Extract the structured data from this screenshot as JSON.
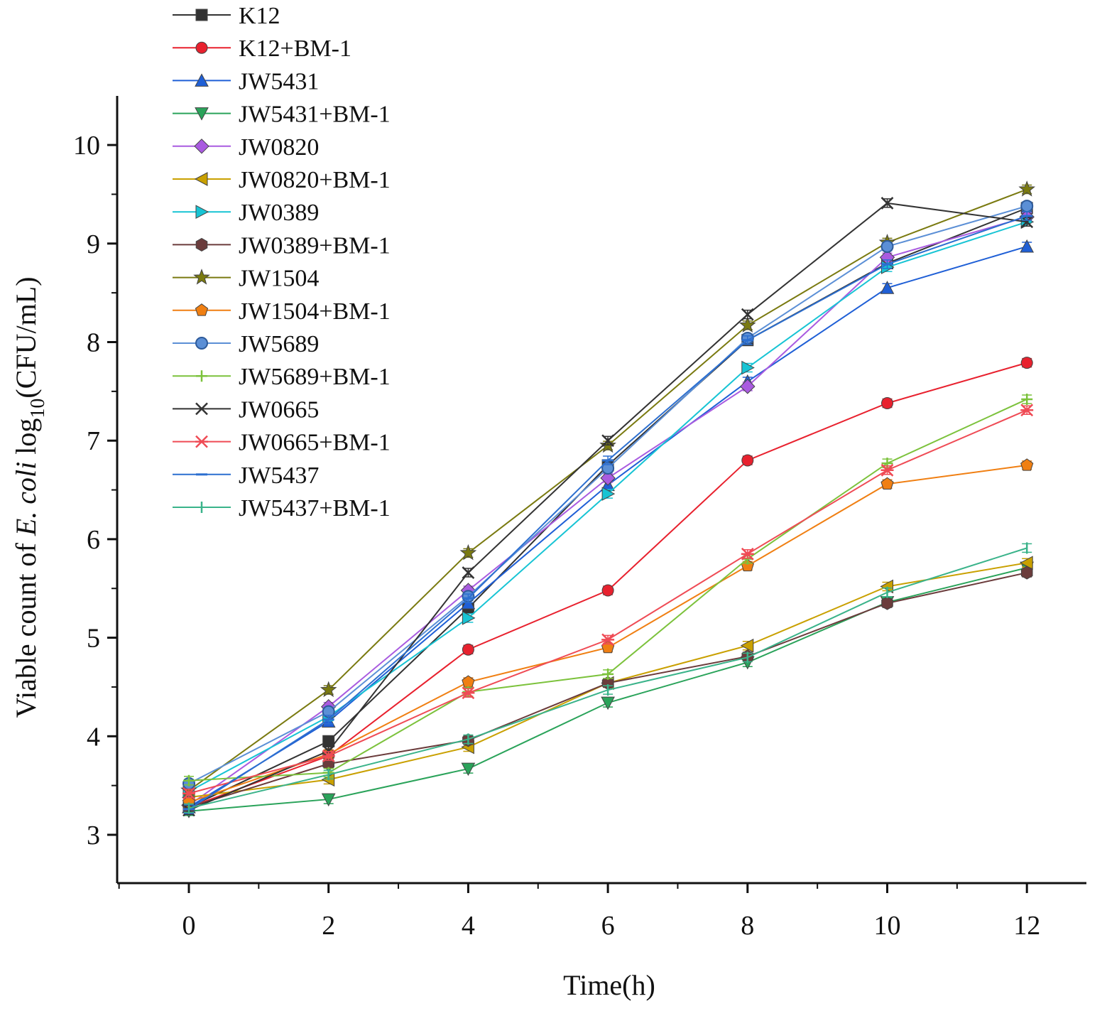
{
  "chart_data": {
    "type": "line",
    "title": "",
    "xlabel": "Time(h)",
    "ylabel_parts": [
      "Viable count of ",
      "E. coli",
      " log",
      "10",
      "(CFU/mL)"
    ],
    "x": [
      0,
      2,
      4,
      6,
      8,
      10,
      12
    ],
    "x_ticks": [
      "0",
      "2",
      "4",
      "6",
      "8",
      "10",
      "12"
    ],
    "y_ticks": [
      "3",
      "4",
      "5",
      "6",
      "7",
      "8",
      "9",
      "10"
    ],
    "xlim": [
      -1,
      13
    ],
    "ylim": [
      2.5,
      10.5
    ],
    "legend_position": "top-left",
    "series": [
      {
        "name": "K12",
        "color": "#333333",
        "marker": "square",
        "values": [
          3.28,
          3.95,
          5.3,
          6.75,
          8.02,
          8.8,
          9.36
        ]
      },
      {
        "name": "K12+BM-1",
        "color": "#e8212e",
        "marker": "circle",
        "values": [
          3.28,
          3.8,
          4.88,
          5.48,
          6.8,
          7.38,
          7.79
        ]
      },
      {
        "name": "JW5431",
        "color": "#1f5fd6",
        "marker": "triangle-up",
        "values": [
          3.28,
          4.15,
          5.35,
          6.55,
          7.6,
          8.55,
          8.97
        ]
      },
      {
        "name": "JW5431+BM-1",
        "color": "#2aa35a",
        "marker": "triangle-down",
        "values": [
          3.24,
          3.36,
          3.67,
          4.34,
          4.75,
          5.36,
          5.71
        ]
      },
      {
        "name": "JW0820",
        "color": "#a95be0",
        "marker": "diamond",
        "values": [
          3.3,
          4.3,
          5.48,
          6.62,
          7.55,
          8.86,
          9.27
        ]
      },
      {
        "name": "JW0820+BM-1",
        "color": "#c9a000",
        "marker": "triangle-left",
        "values": [
          3.38,
          3.56,
          3.89,
          4.54,
          4.92,
          5.52,
          5.76
        ]
      },
      {
        "name": "JW0389",
        "color": "#17c4d4",
        "marker": "triangle-right",
        "values": [
          3.44,
          4.2,
          5.2,
          6.46,
          7.74,
          8.76,
          9.22
        ]
      },
      {
        "name": "JW0389+BM-1",
        "color": "#6b3c3c",
        "marker": "hexagon",
        "values": [
          3.28,
          3.72,
          3.96,
          4.54,
          4.81,
          5.35,
          5.66
        ]
      },
      {
        "name": "JW1504",
        "color": "#7a7a10",
        "marker": "star",
        "values": [
          3.45,
          4.47,
          5.86,
          6.95,
          8.17,
          9.01,
          9.55
        ]
      },
      {
        "name": "JW1504+BM-1",
        "color": "#f07f12",
        "marker": "pentagon",
        "values": [
          3.33,
          3.82,
          4.55,
          4.9,
          5.73,
          6.56,
          6.75
        ]
      },
      {
        "name": "JW5689",
        "color": "#5b8fd6",
        "marker": "circle-dot",
        "values": [
          3.52,
          4.25,
          5.42,
          6.72,
          8.04,
          8.97,
          9.38
        ]
      },
      {
        "name": "JW5689+BM-1",
        "color": "#7cc23c",
        "marker": "plus",
        "values": [
          3.55,
          3.63,
          4.45,
          4.63,
          5.8,
          6.77,
          7.42
        ]
      },
      {
        "name": "JW0665",
        "color": "#333333",
        "marker": "x",
        "values": [
          3.25,
          3.85,
          5.66,
          7.0,
          8.28,
          9.41,
          9.22
        ]
      },
      {
        "name": "JW0665+BM-1",
        "color": "#ef4b55",
        "marker": "asterisk",
        "values": [
          3.42,
          3.8,
          4.44,
          4.98,
          5.85,
          6.7,
          7.31
        ]
      },
      {
        "name": "JW5437",
        "color": "#2c6fd0",
        "marker": "dash",
        "values": [
          3.26,
          4.17,
          5.4,
          6.8,
          8.02,
          8.79,
          9.28
        ]
      },
      {
        "name": "JW5437+BM-1",
        "color": "#3ab38a",
        "marker": "tick",
        "values": [
          3.27,
          3.61,
          3.97,
          4.47,
          4.8,
          5.46,
          5.91
        ]
      }
    ]
  }
}
